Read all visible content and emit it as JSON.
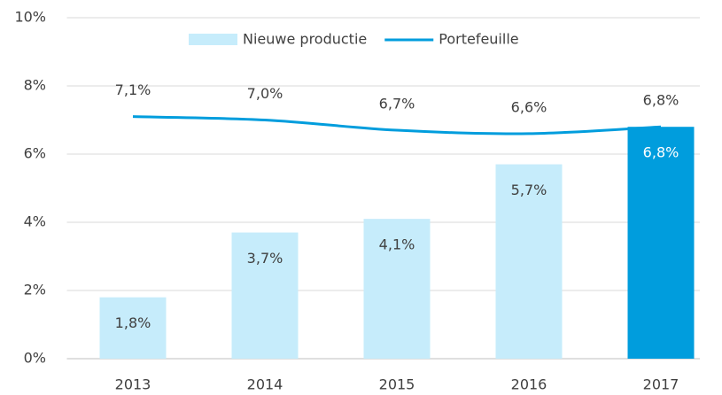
{
  "chart_data": {
    "type": "bar_line",
    "categories": [
      "2013",
      "2014",
      "2015",
      "2016",
      "2017"
    ],
    "series": [
      {
        "name": "Nieuwe productie",
        "type": "bar",
        "color": "#c6ecfb",
        "colors": [
          "#c6ecfb",
          "#c6ecfb",
          "#c6ecfb",
          "#c6ecfb",
          "#009ddd"
        ],
        "values": [
          1.8,
          3.7,
          4.1,
          5.7,
          6.8
        ],
        "value_labels": [
          "1,8%",
          "3,7%",
          "4,1%",
          "5,7%",
          "6,8%"
        ]
      },
      {
        "name": "Portefeuille",
        "type": "line",
        "color": "#009ddd",
        "values": [
          7.1,
          7.0,
          6.7,
          6.6,
          6.8
        ],
        "value_labels": [
          "7,1%",
          "7,0%",
          "6,7%",
          "6,6%",
          "6,8%"
        ]
      }
    ],
    "ylim": [
      0,
      10
    ],
    "yticks": [
      {
        "value": 0,
        "label": "0%"
      },
      {
        "value": 2,
        "label": "2%"
      },
      {
        "value": 4,
        "label": "4%"
      },
      {
        "value": 6,
        "label": "6%"
      },
      {
        "value": 8,
        "label": "8%"
      },
      {
        "value": 10,
        "label": "10%"
      }
    ],
    "grid": true,
    "legend": "top"
  }
}
